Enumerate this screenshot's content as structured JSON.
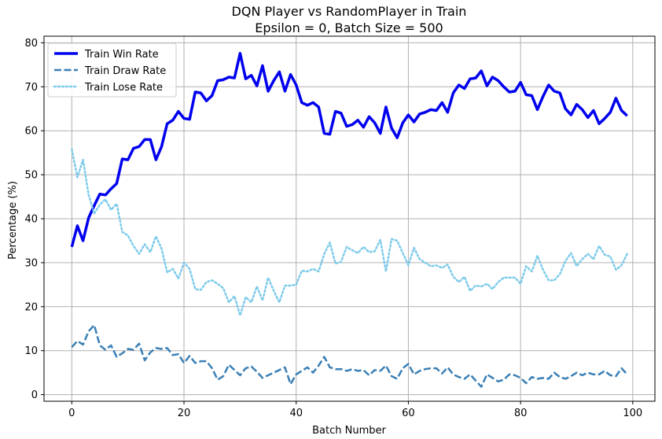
{
  "chart_data": {
    "type": "line",
    "title": "DQN Player vs RandomPlayer in Train",
    "subtitle": "Epsilon = 0, Batch Size = 500",
    "xlabel": "Batch Number",
    "ylabel": "Percentage (%)",
    "xlim": [
      -4.95,
      103.95
    ],
    "ylim": [
      -1.5,
      81.5
    ],
    "xticks": [
      0,
      20,
      40,
      60,
      80,
      100
    ],
    "yticks": [
      0,
      10,
      20,
      30,
      40,
      50,
      60,
      70,
      80
    ],
    "grid": true,
    "legend_position": "top-left",
    "x": [
      0,
      1,
      2,
      3,
      4,
      5,
      6,
      7,
      8,
      9,
      10,
      11,
      12,
      13,
      14,
      15,
      16,
      17,
      18,
      19,
      20,
      21,
      22,
      23,
      24,
      25,
      26,
      27,
      28,
      29,
      30,
      31,
      32,
      33,
      34,
      35,
      36,
      37,
      38,
      39,
      40,
      41,
      42,
      43,
      44,
      45,
      46,
      47,
      48,
      49,
      50,
      51,
      52,
      53,
      54,
      55,
      56,
      57,
      58,
      59,
      60,
      61,
      62,
      63,
      64,
      65,
      66,
      67,
      68,
      69,
      70,
      71,
      72,
      73,
      74,
      75,
      76,
      77,
      78,
      79,
      80,
      81,
      82,
      83,
      84,
      85,
      86,
      87,
      88,
      89,
      90,
      91,
      92,
      93,
      94,
      95,
      96,
      97,
      98,
      99
    ],
    "series": [
      {
        "name": "Train Win Rate",
        "color": "#0000ee",
        "style": "solid",
        "values": [
          33.6,
          38.4,
          35.0,
          40.2,
          43.0,
          45.6,
          45.4,
          46.8,
          48.0,
          53.6,
          53.4,
          56.0,
          56.4,
          58.0,
          58.0,
          53.4,
          56.4,
          61.6,
          62.4,
          64.4,
          62.8,
          62.6,
          68.8,
          68.6,
          66.8,
          68.0,
          71.4,
          71.6,
          72.2,
          72.0,
          77.6,
          71.8,
          72.6,
          70.2,
          74.8,
          69.0,
          71.4,
          73.4,
          69.0,
          72.8,
          70.4,
          66.4,
          65.8,
          66.4,
          65.4,
          59.4,
          59.2,
          64.4,
          64.0,
          61.0,
          61.4,
          62.4,
          60.8,
          63.2,
          61.8,
          59.4,
          65.4,
          60.6,
          58.4,
          61.8,
          63.6,
          62.0,
          63.8,
          64.2,
          64.8,
          64.6,
          66.4,
          64.2,
          68.6,
          70.4,
          69.6,
          71.8,
          72.0,
          73.6,
          70.2,
          72.2,
          71.4,
          70.0,
          68.8,
          69.0,
          71.0,
          68.2,
          68.0,
          64.8,
          67.8,
          70.4,
          69.0,
          68.6,
          65.0,
          63.6,
          66.0,
          64.8,
          63.0,
          64.6,
          61.6,
          62.8,
          64.2,
          67.4,
          64.6,
          63.4
        ]
      },
      {
        "name": "Train Draw Rate",
        "color": "#3a7fb5",
        "style": "dashed",
        "values": [
          10.8,
          12.2,
          11.4,
          14.4,
          15.8,
          11.2,
          10.2,
          11.2,
          8.6,
          9.4,
          10.4,
          10.2,
          11.6,
          7.8,
          9.6,
          10.6,
          10.4,
          10.6,
          9.0,
          9.2,
          7.2,
          8.8,
          7.2,
          7.6,
          7.6,
          6.0,
          3.4,
          4.2,
          6.8,
          5.6,
          4.4,
          6.0,
          6.4,
          5.2,
          3.8,
          4.4,
          5.0,
          5.6,
          6.2,
          2.4,
          4.6,
          5.4,
          6.2,
          5.0,
          6.6,
          8.6,
          6.2,
          5.8,
          5.8,
          5.4,
          5.8,
          5.4,
          5.6,
          4.4,
          5.6,
          5.4,
          6.6,
          4.2,
          3.6,
          6.0,
          7.0,
          4.6,
          5.4,
          5.8,
          6.0,
          6.0,
          4.8,
          6.2,
          4.6,
          4.0,
          3.6,
          4.6,
          3.2,
          1.8,
          4.6,
          3.8,
          3.0,
          3.4,
          4.6,
          4.4,
          3.8,
          2.6,
          4.0,
          3.6,
          3.8,
          3.6,
          5.0,
          4.0,
          3.6,
          4.2,
          5.0,
          4.4,
          5.0,
          4.6,
          4.6,
          5.4,
          4.4,
          4.2,
          6.0,
          4.6
        ]
      },
      {
        "name": "Train Lose Rate",
        "color": "#7ecbea",
        "style": "dotted",
        "values": [
          55.8,
          49.4,
          53.4,
          45.4,
          41.2,
          43.2,
          44.4,
          42.0,
          43.4,
          37.0,
          36.2,
          33.8,
          32.0,
          34.2,
          32.4,
          36.0,
          33.2,
          27.8,
          28.6,
          26.4,
          30.0,
          28.6,
          24.0,
          23.8,
          25.6,
          26.0,
          25.2,
          24.2,
          21.0,
          22.4,
          18.0,
          22.2,
          21.0,
          24.6,
          21.4,
          26.6,
          23.6,
          21.0,
          24.8,
          24.8,
          25.0,
          28.2,
          28.0,
          28.6,
          28.0,
          32.0,
          34.6,
          29.8,
          30.2,
          33.6,
          32.8,
          32.2,
          33.6,
          32.4,
          32.6,
          35.2,
          28.0,
          35.4,
          35.0,
          32.2,
          29.4,
          33.4,
          30.8,
          30.0,
          29.2,
          29.4,
          28.8,
          29.6,
          26.8,
          25.6,
          26.8,
          23.6,
          24.8,
          24.6,
          25.2,
          24.0,
          25.6,
          26.6,
          26.6,
          26.6,
          25.2,
          29.2,
          28.0,
          31.6,
          28.4,
          26.0,
          26.0,
          27.4,
          30.4,
          32.2,
          29.2,
          30.8,
          32.0,
          30.8,
          33.8,
          31.8,
          31.4,
          28.4,
          29.4,
          32.0
        ]
      }
    ]
  }
}
